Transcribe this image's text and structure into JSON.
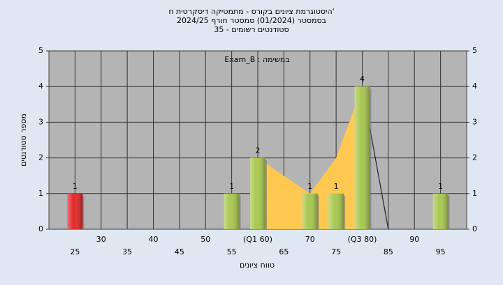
{
  "chart_data": {
    "type": "bar",
    "title_lines": [
      "היסטוגרמת ציונים בקורס - מתמטיקה דיסקרטית ח'",
      "בסמסטר  (01/2024)  סמסטר חורף 2024/25",
      "35 - סטודנטים רשומים"
    ],
    "annotation": "Exam_B : במשימה",
    "y_label": "מספר סטודנטים",
    "x_label": "טווח ציונים",
    "categories": [
      "25",
      "30",
      "35",
      "40",
      "45",
      "50",
      "55",
      "(Q1 60)",
      "65",
      "70",
      "75",
      "(Q3 80)",
      "85",
      "90",
      "95"
    ],
    "values": [
      1,
      0,
      0,
      0,
      0,
      0,
      1,
      2,
      0,
      1,
      1,
      4,
      0,
      0,
      1
    ],
    "colors": [
      "#e02828",
      "#a8c850",
      "#a8c850",
      "#a8c850",
      "#a8c850",
      "#a8c850",
      "#a8c850",
      "#a8c850",
      "#a8c850",
      "#a8c850",
      "#a8c850",
      "#a8c850",
      "#a8c850",
      "#a8c850",
      "#a8c850"
    ],
    "area_values": [
      null,
      null,
      null,
      null,
      null,
      null,
      null,
      2,
      1.5,
      1,
      2,
      4,
      null,
      null,
      null
    ],
    "area_color": "#ffc850",
    "line_values": [
      null,
      null,
      null,
      null,
      null,
      null,
      null,
      null,
      null,
      null,
      null,
      4,
      0,
      null,
      null
    ],
    "ylim": [
      0,
      5
    ],
    "yticks": [
      0,
      1,
      2,
      3,
      4,
      5
    ],
    "grid": true
  }
}
